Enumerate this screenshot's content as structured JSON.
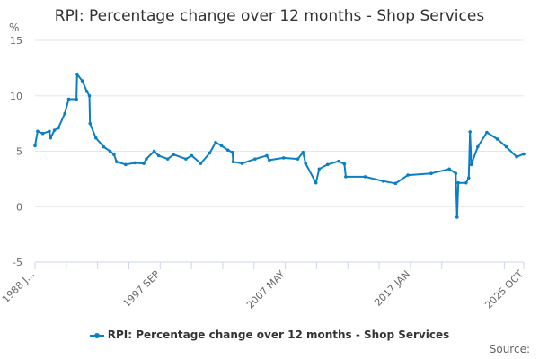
{
  "chart_data": {
    "type": "line",
    "title": "RPI: Percentage change over 12 months - Shop Services",
    "ylabel": "%",
    "xlabel": "",
    "ylim": [
      -5,
      15
    ],
    "yticks": [
      15,
      10,
      5,
      0,
      -5
    ],
    "xlim": [
      1988.0,
      2025.75
    ],
    "xtick_labels": [
      {
        "x": 1988.0,
        "label": "1988 J..."
      },
      {
        "x": 1997.67,
        "label": "1997 SEP"
      },
      {
        "x": 2007.33,
        "label": "2007 MAY"
      },
      {
        "x": 2017.0,
        "label": "2017 JAN"
      },
      {
        "x": 2025.75,
        "label": "2025 OCT"
      }
    ],
    "grid": true,
    "legend_position": "bottom",
    "series": [
      {
        "name": "RPI: Percentage change over 12 months - Shop Services",
        "color": "#0a7fc4",
        "x": [
          1988.0,
          1988.2,
          1988.6,
          1989.1,
          1989.2,
          1989.5,
          1989.8,
          1990.3,
          1990.6,
          1991.2,
          1991.25,
          1991.65,
          1992.0,
          1992.2,
          1992.25,
          1992.7,
          1993.3,
          1993.8,
          1994.1,
          1994.3,
          1995.0,
          1995.7,
          1996.4,
          1996.6,
          1997.2,
          1997.55,
          1998.25,
          1998.7,
          1999.65,
          2000.1,
          2000.8,
          2001.5,
          2001.95,
          2002.4,
          2002.9,
          2003.25,
          2003.3,
          2004.0,
          2005.0,
          2005.9,
          2006.1,
          2007.2,
          2008.3,
          2008.7,
          2008.9,
          2009.7,
          2009.95,
          2010.6,
          2011.45,
          2011.9,
          2012.0,
          2013.5,
          2014.9,
          2015.85,
          2016.8,
          2018.6,
          2020.0,
          2020.5,
          2020.6,
          2020.7,
          2021.3,
          2021.5,
          2021.6,
          2021.7,
          2022.2,
          2022.9,
          2023.7,
          2024.4,
          2025.2,
          2025.75
        ],
        "y": [
          5.5,
          6.8,
          6.6,
          6.8,
          6.2,
          6.9,
          7.1,
          8.4,
          9.7,
          9.7,
          11.95,
          11.35,
          10.4,
          10.0,
          7.5,
          6.2,
          5.4,
          5.0,
          4.7,
          4.05,
          3.8,
          3.95,
          3.9,
          4.3,
          5.0,
          4.6,
          4.3,
          4.7,
          4.3,
          4.6,
          3.9,
          4.85,
          5.8,
          5.5,
          5.1,
          4.9,
          4.05,
          3.9,
          4.3,
          4.6,
          4.2,
          4.4,
          4.3,
          4.9,
          3.9,
          2.15,
          3.4,
          3.8,
          4.1,
          3.85,
          2.7,
          2.7,
          2.3,
          2.1,
          2.85,
          3.0,
          3.4,
          3.0,
          -0.95,
          2.15,
          2.15,
          2.6,
          6.75,
          3.8,
          5.4,
          6.7,
          6.1,
          5.4,
          4.5,
          4.75
        ]
      }
    ],
    "source_label": "Source:"
  }
}
